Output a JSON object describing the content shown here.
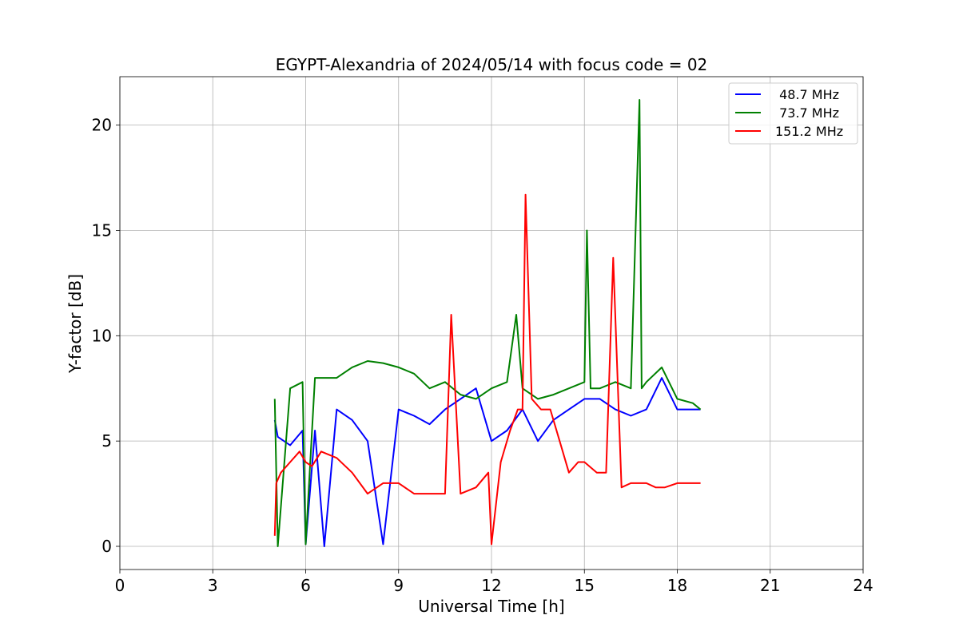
{
  "chart_data": {
    "type": "line",
    "title": "EGYPT-Alexandria of 2024/05/14 with focus code = 02",
    "xlabel": "Universal Time [h]",
    "ylabel": "Y-factor [dB]",
    "xlim": [
      0,
      24
    ],
    "ylim": [
      -1.1,
      22.3
    ],
    "xticks": [
      0,
      3,
      6,
      9,
      12,
      15,
      18,
      21,
      24
    ],
    "yticks": [
      0,
      5,
      10,
      15,
      20
    ],
    "xtick_labels": [
      "0",
      "3",
      "6",
      "9",
      "12",
      "15",
      "18",
      "21",
      "24"
    ],
    "ytick_labels": [
      "0",
      "5",
      "10",
      "15",
      "20"
    ],
    "grid": true,
    "legend_position": "top-right",
    "series": [
      {
        "name": " 48.7 MHz",
        "color": "#0000ff",
        "x": [
          5.0,
          5.1,
          5.5,
          5.9,
          6.0,
          6.3,
          6.6,
          7.0,
          7.5,
          8.0,
          8.5,
          9.0,
          9.5,
          10.0,
          10.5,
          11.0,
          11.5,
          12.0,
          12.5,
          13.0,
          13.5,
          14.0,
          14.5,
          15.0,
          15.5,
          16.0,
          16.5,
          17.0,
          17.5,
          18.0,
          18.5,
          18.75
        ],
        "y": [
          6.0,
          5.2,
          4.8,
          5.5,
          0.1,
          5.5,
          0.0,
          6.5,
          6.0,
          5.0,
          0.1,
          6.5,
          6.2,
          5.8,
          6.5,
          7.0,
          7.5,
          5.0,
          5.5,
          6.5,
          5.0,
          6.0,
          6.5,
          7.0,
          7.0,
          6.5,
          6.2,
          6.5,
          8.0,
          6.5,
          6.5,
          6.5
        ]
      },
      {
        "name": " 73.7 MHz",
        "color": "#008000",
        "x": [
          5.0,
          5.1,
          5.5,
          5.9,
          6.0,
          6.3,
          7.0,
          7.5,
          8.0,
          8.5,
          9.0,
          9.5,
          10.0,
          10.5,
          11.0,
          11.5,
          12.0,
          12.5,
          12.8,
          13.0,
          13.5,
          14.0,
          14.5,
          15.0,
          15.08,
          15.2,
          15.5,
          16.0,
          16.5,
          16.78,
          16.85,
          17.0,
          17.5,
          18.0,
          18.5,
          18.75
        ],
        "y": [
          7.0,
          0.0,
          7.5,
          7.8,
          0.1,
          8.0,
          8.0,
          8.5,
          8.8,
          8.7,
          8.5,
          8.2,
          7.5,
          7.8,
          7.2,
          7.0,
          7.5,
          7.8,
          11.0,
          7.5,
          7.0,
          7.2,
          7.5,
          7.8,
          15.0,
          7.5,
          7.5,
          7.8,
          7.5,
          21.2,
          7.5,
          7.8,
          8.5,
          7.0,
          6.8,
          6.5
        ]
      },
      {
        "name": "151.2 MHz",
        "color": "#ff0000",
        "x": [
          5.0,
          5.05,
          5.2,
          5.5,
          5.8,
          6.0,
          6.2,
          6.5,
          7.0,
          7.5,
          8.0,
          8.5,
          9.0,
          9.5,
          10.0,
          10.5,
          10.7,
          11.0,
          11.5,
          11.9,
          12.0,
          12.3,
          12.6,
          12.85,
          13.0,
          13.1,
          13.3,
          13.6,
          13.9,
          14.2,
          14.5,
          14.8,
          15.0,
          15.4,
          15.7,
          15.93,
          16.2,
          16.5,
          16.7,
          17.0,
          17.3,
          17.6,
          18.0,
          18.4,
          18.75
        ],
        "y": [
          0.5,
          3.0,
          3.5,
          4.0,
          4.5,
          4.0,
          3.8,
          4.5,
          4.2,
          3.5,
          2.5,
          3.0,
          3.0,
          2.5,
          2.5,
          2.5,
          11.0,
          2.5,
          2.8,
          3.5,
          0.1,
          4.0,
          5.5,
          6.5,
          6.5,
          16.7,
          7.0,
          6.5,
          6.5,
          5.0,
          3.5,
          4.0,
          4.0,
          3.5,
          3.5,
          13.7,
          2.8,
          3.0,
          3.0,
          3.0,
          2.8,
          2.8,
          3.0,
          3.0,
          3.0
        ]
      }
    ]
  }
}
